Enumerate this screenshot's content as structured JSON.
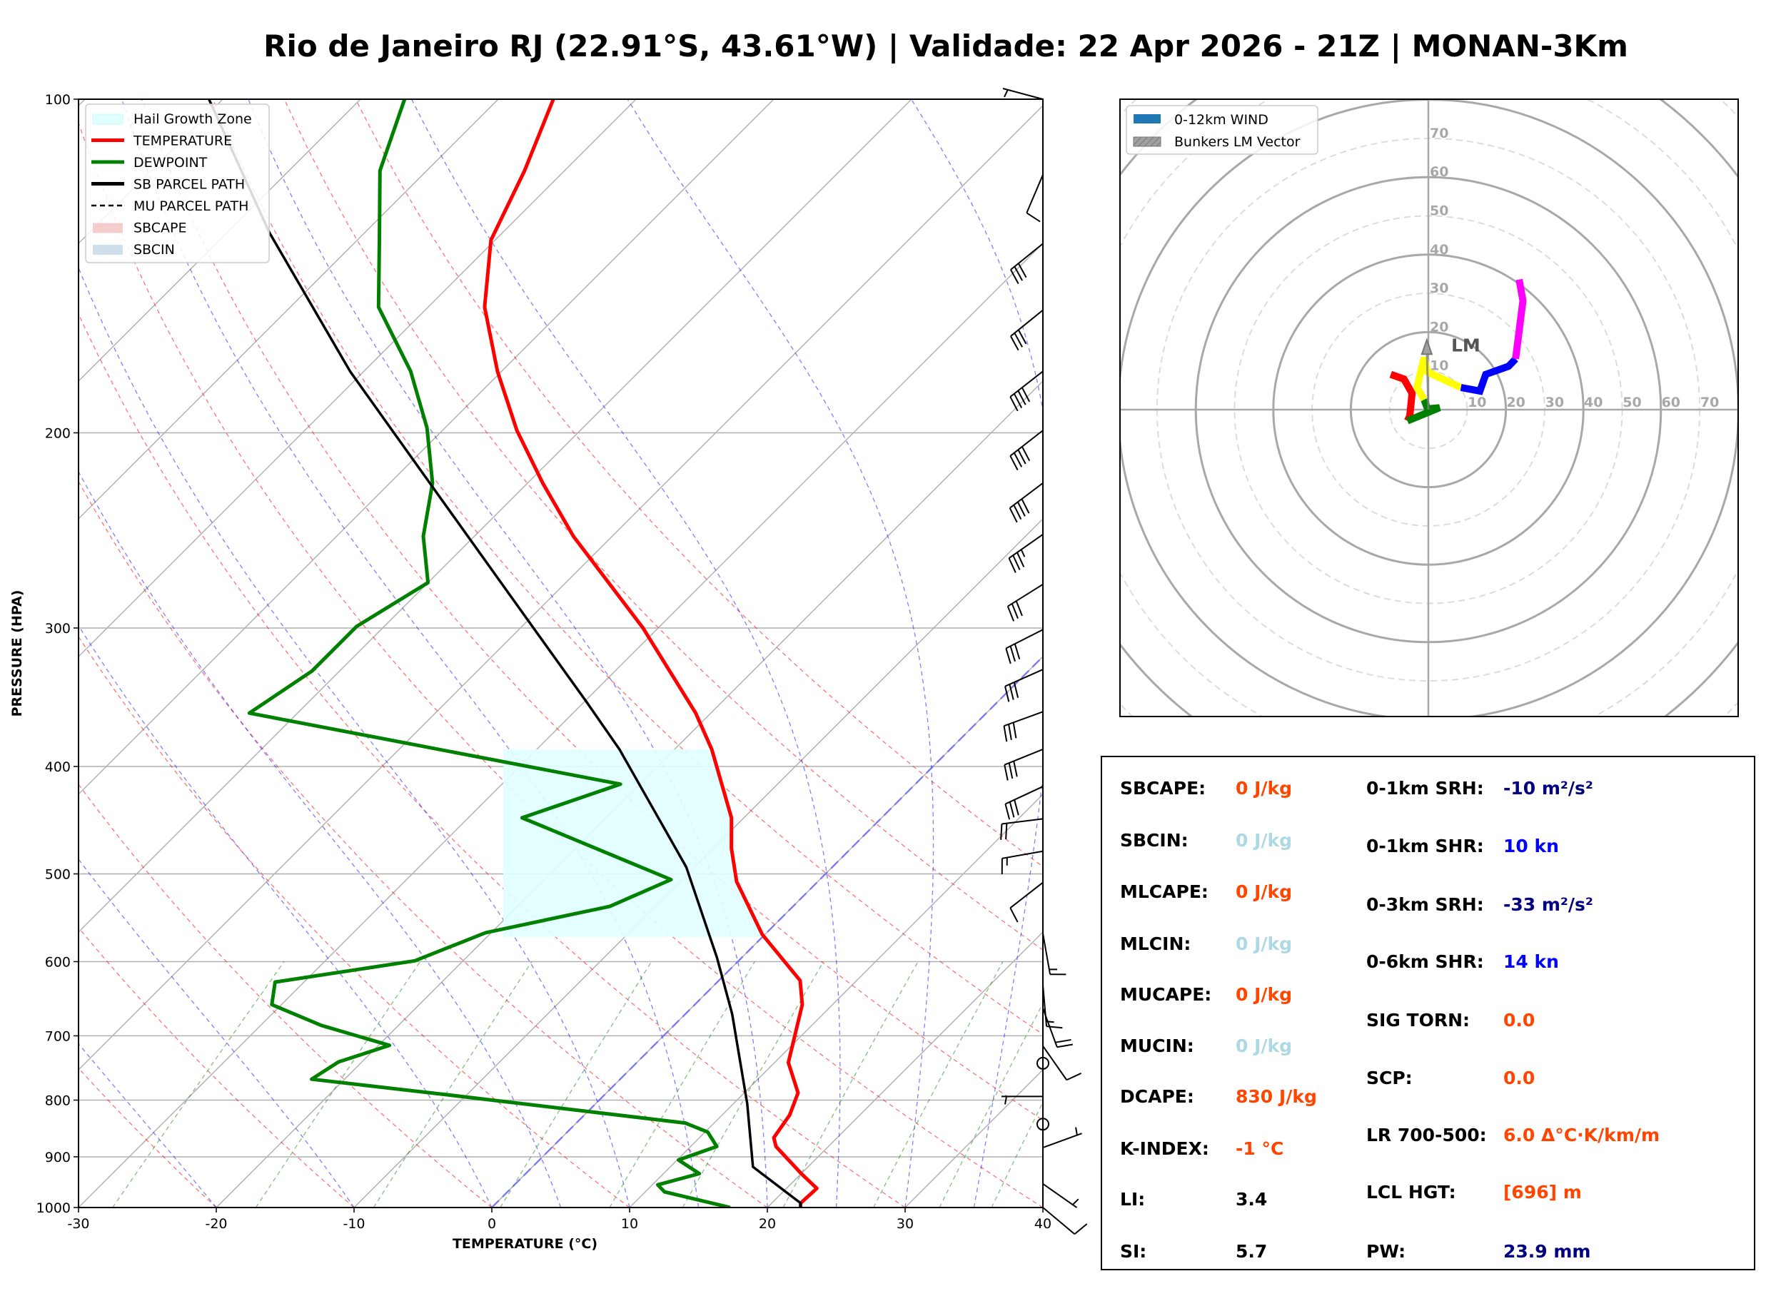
{
  "title": "Rio de Janeiro RJ (22.91°S, 43.61°W) | Validade: 22 Apr 2026 - 21Z | MONAN-3Km",
  "chart_data": [
    {
      "type": "line",
      "kind": "skew-T log-P",
      "xlabel": "TEMPERATURE (°C)",
      "ylabel": "PRESSURE (HPA)",
      "xlim": [
        -30,
        40
      ],
      "ylim": [
        1000,
        100
      ],
      "xticks": [
        -30,
        -20,
        -10,
        0,
        10,
        20,
        30,
        40
      ],
      "yticks": [
        100,
        200,
        300,
        400,
        500,
        600,
        700,
        800,
        900,
        1000
      ],
      "grid": true,
      "legend": {
        "placement": "top-left",
        "entries": [
          {
            "label": "Hail Growth Zone",
            "style": "patch",
            "color": "#e0ffff"
          },
          {
            "label": "TEMPERATURE",
            "style": "line",
            "color": "#ff0000"
          },
          {
            "label": "DEWPOINT",
            "style": "line",
            "color": "#008000"
          },
          {
            "label": "SB PARCEL PATH",
            "style": "line",
            "color": "#000000"
          },
          {
            "label": "MU PARCEL PATH",
            "style": "dashed",
            "color": "#000000"
          },
          {
            "label": "SBCAPE",
            "style": "patch",
            "color": "#f4cccc"
          },
          {
            "label": "SBCIN",
            "style": "patch",
            "color": "#cfe0ec"
          }
        ]
      },
      "series": [
        {
          "name": "TEMPERATURE",
          "color": "#ff0000",
          "points": [
            [
              1000,
              22.4
            ],
            [
              991,
              22.1
            ],
            [
              961,
              22.2
            ],
            [
              932,
              20.0
            ],
            [
              881,
              16.2
            ],
            [
              865,
              15.4
            ],
            [
              825,
              14.9
            ],
            [
              788,
              13.9
            ],
            [
              740,
              11.0
            ],
            [
              656,
              7.8
            ],
            [
              624,
              5.9
            ],
            [
              567,
              -0.2
            ],
            [
              508,
              -5.9
            ],
            [
              474,
              -8.7
            ],
            [
              445,
              -10.9
            ],
            [
              386,
              -17.3
            ],
            [
              358,
              -21.1
            ],
            [
              300,
              -31.1
            ],
            [
              248,
              -42.8
            ],
            [
              222,
              -48.9
            ],
            [
              199,
              -54.6
            ],
            [
              176,
              -60.3
            ],
            [
              154,
              -65.9
            ],
            [
              134,
              -70.3
            ],
            [
              116,
              -72.9
            ],
            [
              100,
              -76.0
            ]
          ]
        },
        {
          "name": "DEWPOINT",
          "color": "#008000",
          "points": [
            [
              1000,
              17.3
            ],
            [
              968,
              11.4
            ],
            [
              954,
              10.4
            ],
            [
              932,
              12.6
            ],
            [
              906,
              10.1
            ],
            [
              881,
              11.9
            ],
            [
              855,
              10.2
            ],
            [
              839,
              7.9
            ],
            [
              791,
              -11.5
            ],
            [
              766,
              -22.4
            ],
            [
              739,
              -21.7
            ],
            [
              714,
              -19.2
            ],
            [
              685,
              -25.6
            ],
            [
              656,
              -30.7
            ],
            [
              626,
              -32.1
            ],
            [
              599,
              -23.5
            ],
            [
              565,
              -20.4
            ],
            [
              535,
              -13.3
            ],
            [
              506,
              -10.8
            ],
            [
              445,
              -26.1
            ],
            [
              415,
              -21.4
            ],
            [
              358,
              -53.5
            ],
            [
              328,
              -52.0
            ],
            [
              299,
              -52.0
            ],
            [
              273,
              -50.0
            ],
            [
              248,
              -53.7
            ],
            [
              222,
              -56.9
            ],
            [
              198,
              -61.3
            ],
            [
              176,
              -66.6
            ],
            [
              154,
              -73.6
            ],
            [
              134,
              -78.4
            ],
            [
              116,
              -83.4
            ],
            [
              100,
              -86.8
            ]
          ]
        },
        {
          "name": "SB PARCEL PATH",
          "color": "#000000",
          "points": [
            [
              1000,
              22.4
            ],
            [
              991,
              22.1
            ],
            [
              919,
              16.0
            ],
            [
              806,
              11.0
            ],
            [
              669,
              3.4
            ],
            [
              595,
              -1.8
            ],
            [
              493,
              -10.6
            ],
            [
              386,
              -24.0
            ],
            [
              350,
              -29.8
            ],
            [
              288,
              -41.5
            ],
            [
              222,
              -57.1
            ],
            [
              176,
              -71.0
            ],
            [
              132,
              -86.9
            ],
            [
              100,
              -101.0
            ]
          ]
        }
      ],
      "hail_growth_zone": {
        "top_hpa": 386,
        "bottom_hpa": 570
      },
      "wind_barbs": [
        {
          "p": 100,
          "dir": 285,
          "spd": 5
        },
        {
          "p": 117,
          "dir": 203,
          "spd": 10
        },
        {
          "p": 135,
          "dir": 231,
          "spd": 30
        },
        {
          "p": 155,
          "dir": 231,
          "spd": 30
        },
        {
          "p": 176,
          "dir": 232,
          "spd": 40
        },
        {
          "p": 199,
          "dir": 232,
          "spd": 40
        },
        {
          "p": 222,
          "dir": 233,
          "spd": 40
        },
        {
          "p": 247,
          "dir": 235,
          "spd": 35
        },
        {
          "p": 274,
          "dir": 238,
          "spd": 30
        },
        {
          "p": 301,
          "dir": 243,
          "spd": 30
        },
        {
          "p": 327,
          "dir": 246,
          "spd": 30
        },
        {
          "p": 357,
          "dir": 250,
          "spd": 30
        },
        {
          "p": 386,
          "dir": 248,
          "spd": 30
        },
        {
          "p": 417,
          "dir": 245,
          "spd": 30
        },
        {
          "p": 446,
          "dir": 263,
          "spd": 20
        },
        {
          "p": 477,
          "dir": 260,
          "spd": 15
        },
        {
          "p": 509,
          "dir": 232,
          "spd": 10
        },
        {
          "p": 566,
          "dir": 170,
          "spd": 15
        },
        {
          "p": 630,
          "dir": 175,
          "spd": 15
        },
        {
          "p": 661,
          "dir": 160,
          "spd": 20
        },
        {
          "p": 715,
          "dir": 145,
          "spd": 10
        },
        {
          "p": 741,
          "dir": 0,
          "spd": 0
        },
        {
          "p": 794,
          "dir": 270,
          "spd": 5
        },
        {
          "p": 841,
          "dir": 0,
          "spd": 0
        },
        {
          "p": 883,
          "dir": 70,
          "spd": 5
        },
        {
          "p": 952,
          "dir": 125,
          "spd": 5
        },
        {
          "p": 1000,
          "dir": 130,
          "spd": 10
        }
      ]
    },
    {
      "type": "line",
      "kind": "hodograph",
      "units": "kn",
      "xlim": [
        -80,
        80
      ],
      "ylim": [
        -80,
        80
      ],
      "ring_labels": [
        10,
        20,
        30,
        40,
        50,
        60,
        70
      ],
      "legend": {
        "placement": "top-left",
        "entries": [
          {
            "label": "0-12km WIND",
            "color": "#1f77b4"
          },
          {
            "label": "Bunkers LM Vector",
            "color": "#a0a0a0"
          }
        ]
      },
      "segments": [
        {
          "color": "#ff0000",
          "points": [
            [
              -9.7,
              9.1
            ],
            [
              -6.3,
              7.9
            ],
            [
              -4.2,
              4.2
            ],
            [
              -4.8,
              -1.7
            ],
            [
              -5.4,
              -2.9
            ]
          ]
        },
        {
          "color": "#008000",
          "points": [
            [
              -5.4,
              -2.9
            ],
            [
              2.9,
              0.5
            ],
            [
              -0.2,
              0.2
            ],
            [
              -1.1,
              2.6
            ]
          ]
        },
        {
          "color": "#ffff00",
          "points": [
            [
              -1.1,
              2.6
            ],
            [
              -2.9,
              5.7
            ],
            [
              -2.0,
              9.7
            ],
            [
              -1.1,
              13.4
            ],
            [
              -0.2,
              9.7
            ],
            [
              8.4,
              5.7
            ]
          ]
        },
        {
          "color": "#0000ff",
          "points": [
            [
              8.4,
              5.7
            ],
            [
              13.3,
              4.8
            ],
            [
              14.8,
              9.1
            ],
            [
              20.7,
              11.2
            ],
            [
              22.5,
              13.1
            ]
          ]
        },
        {
          "color": "#ff00ff",
          "points": [
            [
              22.5,
              13.1
            ],
            [
              24.4,
              28.1
            ],
            [
              23.4,
              33.6
            ]
          ]
        }
      ],
      "bunkers_lm": {
        "u": -0.4,
        "v": 18.0,
        "label": "LM"
      }
    }
  ],
  "stats": {
    "left": [
      {
        "label": "SBCAPE:",
        "value": "0 J/kg",
        "color": "#ff4500"
      },
      {
        "label": "SBCIN:",
        "value": "0 J/kg",
        "color": "#add8e6"
      },
      {
        "label": "MLCAPE:",
        "value": "0 J/kg",
        "color": "#ff4500"
      },
      {
        "label": "MLCIN:",
        "value": "0 J/kg",
        "color": "#add8e6"
      },
      {
        "label": "MUCAPE:",
        "value": "0 J/kg",
        "color": "#ff4500"
      },
      {
        "label": "MUCIN:",
        "value": "0 J/kg",
        "color": "#add8e6"
      },
      {
        "label": "DCAPE:",
        "value": "830 J/kg",
        "color": "#ff4500"
      },
      {
        "label": "K-INDEX:",
        "value": "-1 °C",
        "color": "#ff4500"
      },
      {
        "label": "LI:",
        "value": "3.4",
        "color": "#000000"
      },
      {
        "label": "SI:",
        "value": "5.7",
        "color": "#000000"
      }
    ],
    "right": [
      {
        "label": "0-1km SRH:",
        "value": "-10 m²/s²",
        "color": "#000080"
      },
      {
        "label": "0-1km SHR:",
        "value": "10 kn",
        "color": "#0000ff"
      },
      {
        "label": "0-3km SRH:",
        "value": "-33 m²/s²",
        "color": "#000080"
      },
      {
        "label": "0-6km SHR:",
        "value": "14 kn",
        "color": "#0000ff"
      },
      {
        "label": "SIG TORN:",
        "value": "0.0",
        "color": "#ff4500"
      },
      {
        "label": "SCP:",
        "value": "0.0",
        "color": "#ff4500"
      },
      {
        "label": "LR 700-500:",
        "value": "6.0 Δ°C·K/km/m",
        "color": "#ff4500"
      },
      {
        "label": "LCL HGT:",
        "value": "[696] m",
        "color": "#ff4500"
      },
      {
        "label": "PW:",
        "value": "23.9 mm",
        "color": "#000080"
      }
    ]
  }
}
